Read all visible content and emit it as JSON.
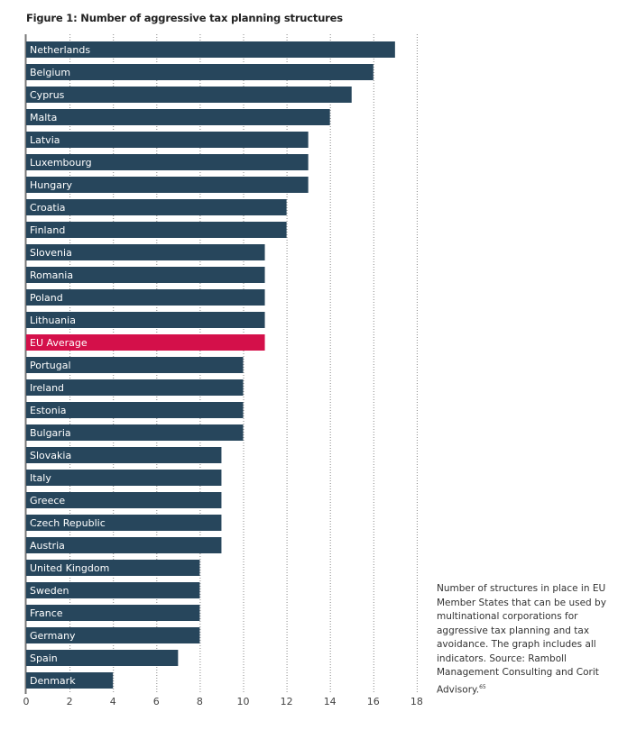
{
  "chart_data": {
    "type": "bar",
    "orientation": "horizontal",
    "title": "Figure 1: Number of aggressive tax planning structures",
    "xlabel": "",
    "ylabel": "",
    "xlim": [
      0,
      18
    ],
    "xticks": [
      0,
      2,
      4,
      6,
      8,
      10,
      12,
      14,
      16,
      18
    ],
    "grid": "vertical dotted",
    "colors": {
      "default": "#27465c",
      "highlight": "#d4104a"
    },
    "categories": [
      "Netherlands",
      "Belgium",
      "Cyprus",
      "Malta",
      "Latvia",
      "Luxembourg",
      "Hungary",
      "Croatia",
      "Finland",
      "Slovenia",
      "Romania",
      "Poland",
      "Lithuania",
      "EU Average",
      "Portugal",
      "Ireland",
      "Estonia",
      "Bulgaria",
      "Slovakia",
      "Italy",
      "Greece",
      "Czech Republic",
      "Austria",
      "United Kingdom",
      "Sweden",
      "France",
      "Germany",
      "Spain",
      "Denmark"
    ],
    "values": [
      17,
      16,
      15,
      14,
      13,
      13,
      13,
      12,
      12,
      11,
      11,
      11,
      11,
      11,
      10,
      10,
      10,
      10,
      9,
      9,
      9,
      9,
      9,
      8,
      8,
      8,
      8,
      7,
      4
    ],
    "highlight": [
      "EU Average"
    ]
  },
  "note": {
    "text": "Number of structures in place in EU Member States that can be used by multinational corporations for aggressive tax planning and tax avoidance. The graph includes all indicators. Source: Ramboll Management Consulting and Corit Advisory.",
    "footnote": "65"
  }
}
